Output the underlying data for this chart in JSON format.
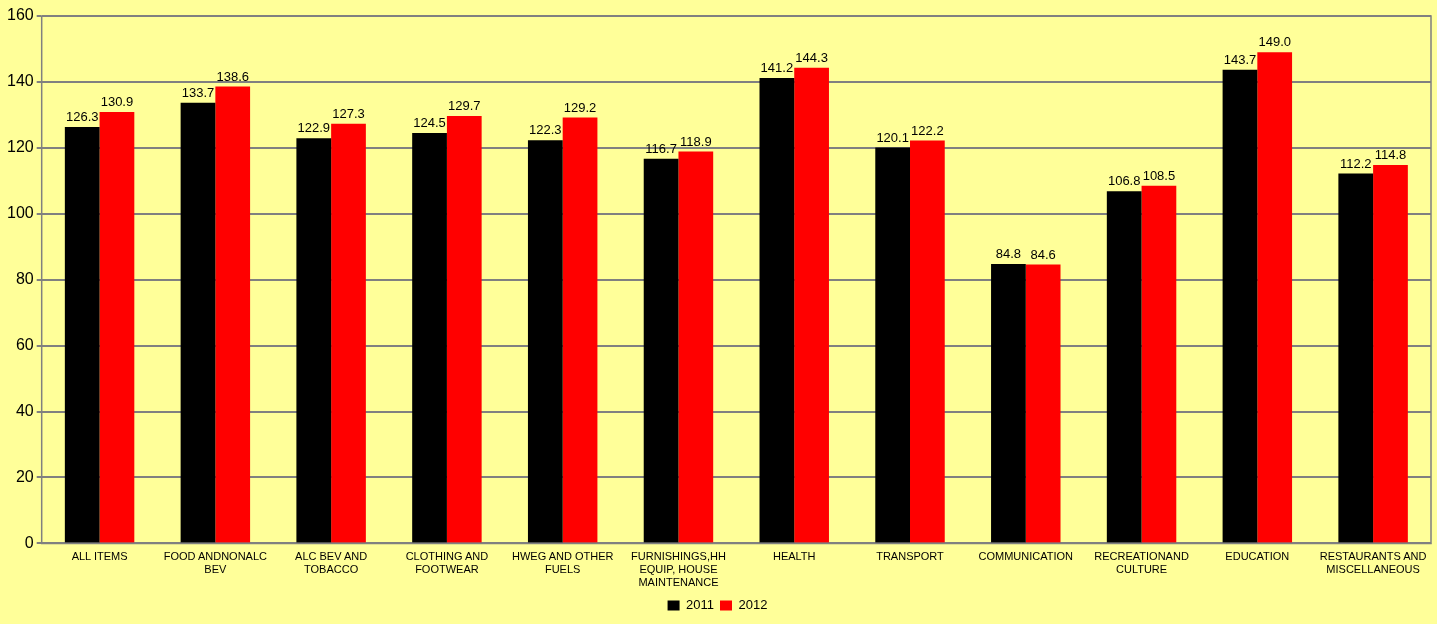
{
  "chart_data": {
    "type": "bar",
    "categories": [
      "ALL ITEMS",
      "FOOD ANDNONALC BEV",
      "ALC BEV AND TOBACCO",
      "CLOTHING AND FOOTWEAR",
      "HWEG AND OTHER FUELS",
      "FURNISHINGS,HH EQUIP, HOUSE MAINTENANCE",
      "HEALTH",
      "TRANSPORT",
      "COMMUNICATION",
      "RECREATIONAND CULTURE",
      "EDUCATION",
      "RESTAURANTS AND MISCELLANEOUS"
    ],
    "series": [
      {
        "name": "2011",
        "color": "#000000",
        "values": [
          126.3,
          133.7,
          122.9,
          124.5,
          122.3,
          116.7,
          141.2,
          120.1,
          84.8,
          106.8,
          143.7,
          112.2
        ],
        "value_labels": [
          "126.3",
          "133.7",
          "122.9",
          "124.5",
          "122.3",
          "116.7",
          "141.2",
          "120.1",
          "84.8",
          "106.8",
          "143.7",
          "112.2"
        ]
      },
      {
        "name": "2012",
        "color": "#ff0000",
        "values": [
          130.9,
          138.6,
          127.3,
          129.7,
          129.2,
          118.9,
          144.3,
          122.2,
          84.6,
          108.5,
          149.0,
          114.8
        ],
        "value_labels": [
          "130.9",
          "138.6",
          "127.3",
          "129.7",
          "129.2",
          "118.9",
          "144.3",
          "122.2",
          "84.6",
          "108.5",
          "149.0",
          "114.8"
        ]
      }
    ],
    "ylim": [
      0,
      160
    ],
    "yticks": [
      0,
      20,
      40,
      60,
      80,
      100,
      120,
      140,
      160
    ],
    "grid": "y",
    "legend": "bottom"
  }
}
